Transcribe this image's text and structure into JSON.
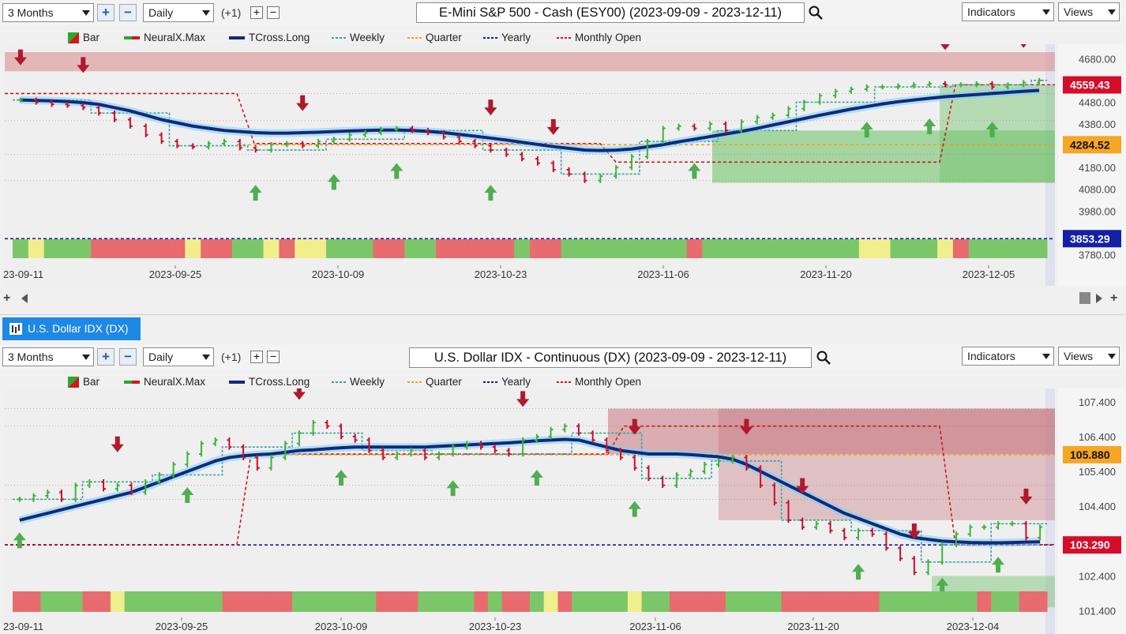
{
  "toolbar_top": {
    "range": "3 Months",
    "interval": "Daily",
    "offset": "(+1)",
    "title": "E-Mini S&P 500 - Cash (ESY00) (2023-09-09 - 2023-12-11)",
    "indicators": "Indicators",
    "views": "Views"
  },
  "toolbar_bottom": {
    "range": "3 Months",
    "interval": "Daily",
    "offset": "(+1)",
    "title": "U.S. Dollar IDX - Continuous (DX) (2023-09-09 - 2023-12-11)",
    "indicators": "Indicators",
    "views": "Views"
  },
  "tab": {
    "label": "U.S. Dollar IDX (DX)"
  },
  "legend": {
    "bar": "Bar",
    "neuralx": "NeuralX.Max",
    "tcross": "TCross.Long",
    "weekly": "Weekly",
    "quarter": "Quarter",
    "yearly": "Yearly",
    "monthly": "Monthly Open"
  },
  "colors": {
    "up": "#3cb43c",
    "down": "#c8102e",
    "tcross": "#102a7a",
    "weekly": "#3aa3a0",
    "quarter": "#f0a020",
    "yearly": "#1a1aa0",
    "monthly": "#d01818",
    "price_tag": "#d50d2a",
    "quarter_tag": "#f5a623",
    "yearly_tag": "#1520a6"
  },
  "chart_data": [
    {
      "type": "candlestick",
      "title": "E-Mini S&P 500 - Cash (ESY00) (2023-09-09 - 2023-12-11)",
      "x_ticks": [
        "2023-09-11",
        "2023-09-25",
        "2023-10-09",
        "2023-10-23",
        "2023-11-06",
        "2023-11-20",
        "2023-12-05"
      ],
      "x_tick_labels": [
        "23-09-11",
        "2023-09-25",
        "2023-10-09",
        "2023-10-23",
        "2023-11-06",
        "2023-11-20",
        "2023-12-05"
      ],
      "y_ticks": [
        4680,
        4580,
        4480,
        4380,
        4280,
        4180,
        4080,
        3980,
        3780
      ],
      "y_tick_labels": [
        "4680.00",
        "",
        "4480.00",
        "4380.00",
        "",
        "4180.00",
        "4080.00",
        "3980.00",
        "3780.00"
      ],
      "ylim": [
        3760,
        4710
      ],
      "price_tags": [
        {
          "label": "4559.43",
          "value": 4559.43,
          "kind": "price"
        },
        {
          "label": "4284.52",
          "value": 4284.52,
          "kind": "quarter"
        },
        {
          "label": "3853.29",
          "value": 3853.29,
          "kind": "yearly"
        }
      ],
      "levels": {
        "quarter": 4284.52,
        "yearly": 3853.29,
        "monthly_open_end": 4559.43
      },
      "close": [
        4490,
        4480,
        4470,
        4465,
        4455,
        4430,
        4400,
        4370,
        4330,
        4300,
        4280,
        4275,
        4290,
        4300,
        4270,
        4260,
        4285,
        4290,
        4280,
        4300,
        4310,
        4330,
        4340,
        4355,
        4360,
        4350,
        4340,
        4320,
        4300,
        4280,
        4260,
        4240,
        4220,
        4200,
        4170,
        4150,
        4120,
        4140,
        4180,
        4230,
        4300,
        4360,
        4370,
        4360,
        4380,
        4350,
        4390,
        4410,
        4420,
        4450,
        4480,
        4510,
        4530,
        4540,
        4550,
        4550,
        4555,
        4560,
        4565,
        4560,
        4560,
        4565,
        4550,
        4560,
        4570,
        4580
      ],
      "tcross": [
        4490,
        4488,
        4486,
        4483,
        4478,
        4470,
        4455,
        4440,
        4420,
        4400,
        4385,
        4370,
        4360,
        4350,
        4345,
        4340,
        4338,
        4338,
        4340,
        4342,
        4345,
        4348,
        4350,
        4352,
        4352,
        4350,
        4346,
        4340,
        4332,
        4324,
        4315,
        4306,
        4296,
        4286,
        4276,
        4268,
        4260,
        4258,
        4260,
        4265,
        4275,
        4285,
        4298,
        4310,
        4322,
        4334,
        4346,
        4360,
        4375,
        4390,
        4405,
        4420,
        4434,
        4448,
        4460,
        4472,
        4482,
        4490,
        4498,
        4505,
        4510,
        4515,
        4520,
        4525,
        4530,
        4534
      ]
    },
    {
      "type": "candlestick",
      "title": "U.S. Dollar IDX - Continuous (DX) (2023-09-09 - 2023-12-11)",
      "x_ticks": [
        "2023-09-11",
        "2023-09-25",
        "2023-10-09",
        "2023-10-23",
        "2023-11-06",
        "2023-11-20",
        "2023-12-04"
      ],
      "x_tick_labels": [
        "23-09-11",
        "2023-09-25",
        "2023-10-09",
        "2023-10-23",
        "2023-11-06",
        "2023-11-20",
        "2023-12-04"
      ],
      "y_ticks": [
        107.4,
        106.4,
        105.4,
        104.4,
        102.4,
        101.4
      ],
      "y_tick_labels": [
        "107.400",
        "106.400",
        "105.400",
        "104.400",
        "102.400",
        "101.400"
      ],
      "ylim": [
        101.3,
        107.6
      ],
      "price_tags": [
        {
          "label": "105.880",
          "value": 105.88,
          "kind": "quarter"
        },
        {
          "label": "103.290",
          "value": 103.29,
          "kind": "price"
        }
      ],
      "levels": {
        "quarter": 105.88,
        "yearly": 103.29
      },
      "close": [
        104.6,
        104.7,
        104.8,
        104.6,
        105.0,
        105.1,
        104.9,
        105.0,
        104.8,
        105.1,
        105.3,
        105.6,
        105.9,
        106.2,
        106.3,
        106.1,
        105.8,
        105.5,
        105.8,
        106.2,
        106.5,
        106.8,
        106.7,
        106.4,
        106.3,
        106.0,
        105.8,
        105.9,
        106.0,
        105.8,
        105.9,
        106.1,
        106.2,
        106.1,
        106.0,
        105.9,
        106.3,
        106.4,
        106.6,
        106.7,
        106.5,
        106.3,
        106.0,
        105.8,
        105.5,
        105.2,
        105.0,
        105.3,
        105.4,
        105.6,
        105.7,
        105.8,
        105.5,
        105.0,
        104.5,
        104.0,
        103.8,
        103.9,
        103.7,
        103.5,
        103.7,
        103.6,
        103.2,
        102.9,
        102.5,
        102.8,
        103.3,
        103.6,
        103.8,
        103.8,
        103.9,
        103.9,
        103.5,
        103.8
      ],
      "tcross": [
        104.0,
        104.1,
        104.2,
        104.3,
        104.4,
        104.5,
        104.6,
        104.7,
        104.8,
        104.95,
        105.1,
        105.25,
        105.4,
        105.55,
        105.7,
        105.8,
        105.85,
        105.88,
        105.9,
        105.95,
        106.0,
        106.02,
        106.05,
        106.08,
        106.1,
        106.1,
        106.1,
        106.1,
        106.1,
        106.1,
        106.12,
        106.14,
        106.16,
        106.18,
        106.2,
        106.22,
        106.25,
        106.28,
        106.3,
        106.32,
        106.3,
        106.2,
        106.1,
        106.0,
        105.95,
        105.9,
        105.9,
        105.9,
        105.88,
        105.85,
        105.82,
        105.75,
        105.6,
        105.4,
        105.2,
        105.0,
        104.8,
        104.6,
        104.4,
        104.2,
        104.05,
        103.9,
        103.75,
        103.6,
        103.5,
        103.45,
        103.4,
        103.38,
        103.36,
        103.35,
        103.35,
        103.36,
        103.37,
        103.38
      ]
    }
  ]
}
